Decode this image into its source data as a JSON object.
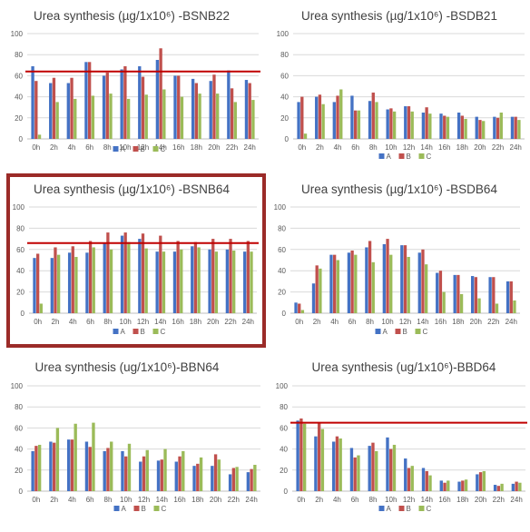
{
  "colors": {
    "A": "#4472C4",
    "B": "#C0504D",
    "C": "#9BBB59",
    "highlight_border": "#9B2B28",
    "ref_line": "#C00000"
  },
  "chart_data": [
    {
      "type": "bar",
      "title": "Urea synthesis (µg/1x10⁶) -BSNB22",
      "categories": [
        "0h",
        "2h",
        "4h",
        "6h",
        "8h",
        "10h",
        "12h",
        "14h",
        "16h",
        "18h",
        "20h",
        "22h",
        "24h"
      ],
      "ylim": [
        0,
        100
      ],
      "yticks": [
        0,
        20,
        40,
        60,
        80,
        100
      ],
      "reference_line": 64,
      "legend": "bottom",
      "series": [
        {
          "name": "A",
          "values": [
            69,
            53,
            53,
            73,
            60,
            66,
            69,
            75,
            60,
            57,
            55,
            65,
            56
          ]
        },
        {
          "name": "B",
          "values": [
            55,
            58,
            58,
            73,
            63,
            69,
            59,
            86,
            60,
            53,
            61,
            48,
            53
          ]
        },
        {
          "name": "C",
          "values": [
            4,
            35,
            38,
            41,
            43,
            38,
            42,
            47,
            40,
            43,
            43,
            35,
            37
          ]
        }
      ]
    },
    {
      "type": "bar",
      "title": "Urea synthesis (µg/1x10⁶) -BSDB21",
      "categories": [
        "0h",
        "2h",
        "4h",
        "6h",
        "8h",
        "10h",
        "12h",
        "14h",
        "16h",
        "18h",
        "20h",
        "22h",
        "24h"
      ],
      "ylim": [
        0,
        100
      ],
      "yticks": [
        0,
        20,
        40,
        60,
        80,
        100
      ],
      "legend": "bottom",
      "series": [
        {
          "name": "A",
          "values": [
            35,
            40,
            35,
            41,
            36,
            28,
            31,
            25,
            24,
            25,
            21,
            21,
            21
          ]
        },
        {
          "name": "B",
          "values": [
            40,
            42,
            41,
            27,
            44,
            29,
            31,
            30,
            22,
            22,
            18,
            20,
            21
          ]
        },
        {
          "name": "C",
          "values": [
            5,
            33,
            47,
            27,
            35,
            26,
            26,
            24,
            21,
            19,
            17,
            25,
            18
          ]
        }
      ]
    },
    {
      "type": "bar",
      "title": "Urea synthesis (µg/1x10⁶) -BSNB64",
      "categories": [
        "0h",
        "2h",
        "4h",
        "6h",
        "8h",
        "10h",
        "12h",
        "14h",
        "16h",
        "18h",
        "20h",
        "22h",
        "24h"
      ],
      "ylim": [
        0,
        100
      ],
      "yticks": [
        0,
        20,
        40,
        60,
        80,
        100
      ],
      "reference_line": 66,
      "legend": "bottom",
      "highlighted": true,
      "series": [
        {
          "name": "A",
          "values": [
            52,
            52,
            57,
            57,
            66,
            73,
            70,
            58,
            58,
            63,
            60,
            60,
            58
          ]
        },
        {
          "name": "B",
          "values": [
            56,
            62,
            63,
            68,
            76,
            76,
            75,
            73,
            68,
            67,
            70,
            70,
            68
          ]
        },
        {
          "name": "C",
          "values": [
            9,
            55,
            53,
            62,
            60,
            67,
            61,
            58,
            60,
            62,
            58,
            59,
            58
          ]
        }
      ]
    },
    {
      "type": "bar",
      "title": "Urea synthesis (µg/1x10⁶) -BSDB64",
      "categories": [
        "0h",
        "2h",
        "4h",
        "6h",
        "8h",
        "10h",
        "12h",
        "14h",
        "16h",
        "18h",
        "20h",
        "22h",
        "24h"
      ],
      "ylim": [
        0,
        100
      ],
      "yticks": [
        0,
        20,
        40,
        60,
        80,
        100
      ],
      "legend": "bottom",
      "series": [
        {
          "name": "A",
          "values": [
            10,
            28,
            55,
            57,
            62,
            65,
            64,
            57,
            38,
            36,
            35,
            34,
            30
          ]
        },
        {
          "name": "B",
          "values": [
            9,
            45,
            55,
            59,
            68,
            70,
            64,
            60,
            40,
            36,
            34,
            34,
            30
          ]
        },
        {
          "name": "C",
          "values": [
            3,
            42,
            50,
            55,
            48,
            55,
            53,
            46,
            20,
            18,
            14,
            9,
            12
          ]
        }
      ]
    },
    {
      "type": "bar",
      "title": "Urea synthesis (ug/1x10⁶)-BBN64",
      "categories": [
        "0h",
        "2h",
        "4h",
        "6h",
        "8h",
        "10h",
        "12h",
        "14h",
        "16h",
        "18h",
        "20h",
        "22h",
        "24h"
      ],
      "ylim": [
        0,
        100
      ],
      "yticks": [
        0,
        20,
        40,
        60,
        80,
        100
      ],
      "legend": "bottom",
      "series": [
        {
          "name": "A",
          "values": [
            38,
            47,
            49,
            47,
            38,
            38,
            28,
            29,
            28,
            24,
            24,
            16,
            18
          ]
        },
        {
          "name": "B",
          "values": [
            43,
            46,
            49,
            42,
            41,
            33,
            33,
            30,
            33,
            26,
            35,
            22,
            21
          ]
        },
        {
          "name": "C",
          "values": [
            44,
            60,
            64,
            65,
            47,
            45,
            39,
            40,
            38,
            32,
            30,
            23,
            25
          ]
        }
      ]
    },
    {
      "type": "bar",
      "title": "Urea synthesis (ug/1x10⁶)-BBD64",
      "categories": [
        "0h",
        "2h",
        "4h",
        "6h",
        "8h",
        "10h",
        "12h",
        "14h",
        "16h",
        "18h",
        "20h",
        "22h",
        "24h"
      ],
      "ylim": [
        0,
        100
      ],
      "yticks": [
        0,
        20,
        40,
        60,
        80,
        100
      ],
      "reference_line": 65,
      "legend": "bottom",
      "series": [
        {
          "name": "A",
          "values": [
            67,
            52,
            47,
            41,
            43,
            51,
            31,
            22,
            10,
            9,
            16,
            6,
            7
          ]
        },
        {
          "name": "B",
          "values": [
            69,
            65,
            52,
            32,
            46,
            40,
            22,
            19,
            8,
            10,
            18,
            5,
            9
          ]
        },
        {
          "name": "C",
          "values": [
            64,
            59,
            50,
            34,
            38,
            44,
            24,
            15,
            10,
            11,
            19,
            7,
            8
          ]
        }
      ]
    }
  ]
}
